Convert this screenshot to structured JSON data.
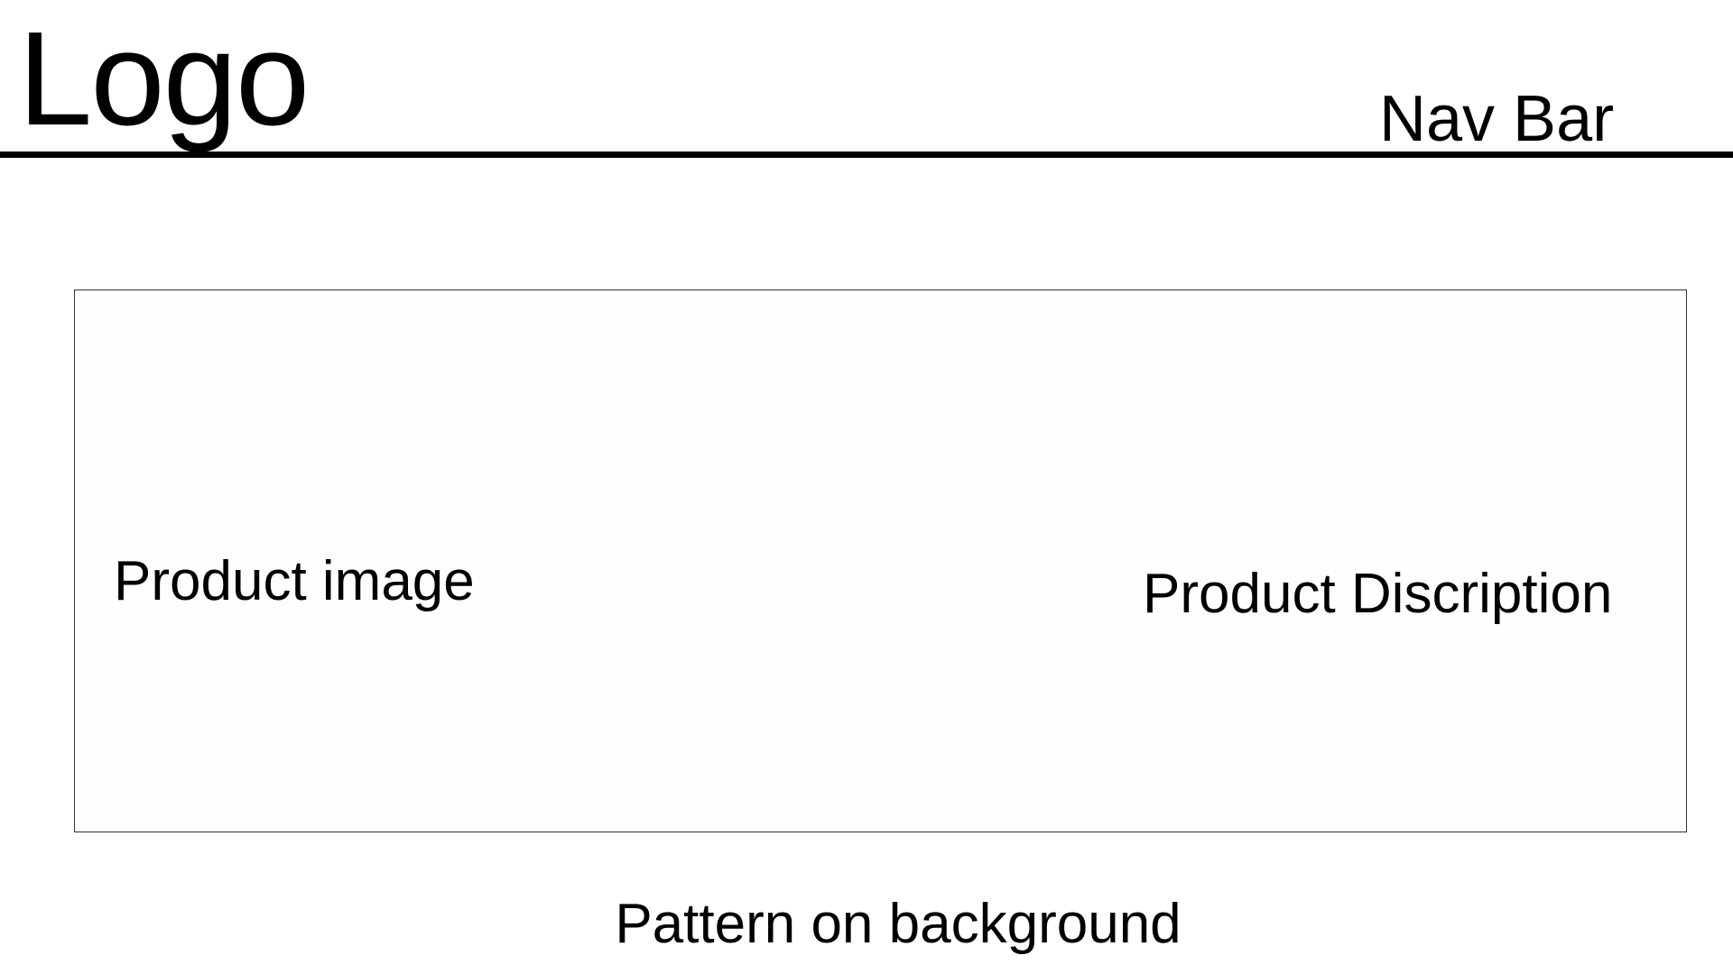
{
  "header": {
    "logo_text": "Logo",
    "nav_text": "Nav Bar"
  },
  "content": {
    "image_label": "Product image",
    "description_label": "Product Discription"
  },
  "footer": {
    "note": "Pattern on background"
  },
  "colors": {
    "background": "#ffffff",
    "text": "#000000",
    "border": "#333333"
  }
}
